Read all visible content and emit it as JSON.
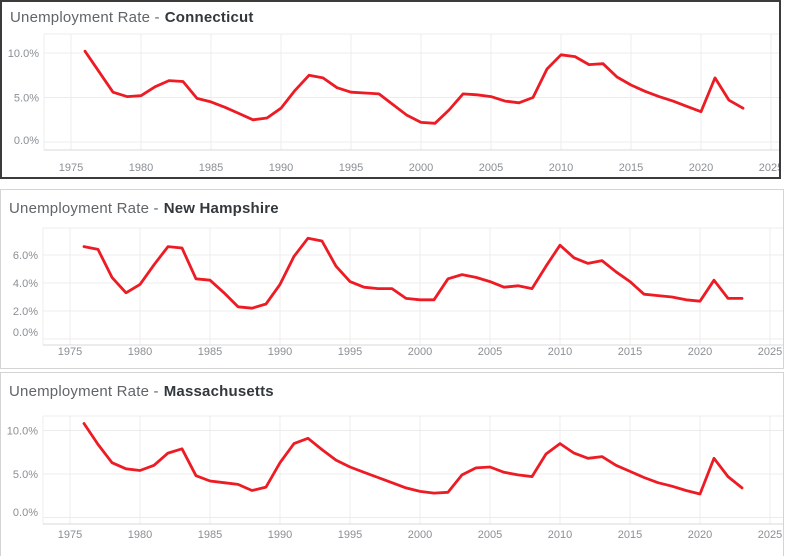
{
  "styles": {
    "line_red": "#ed1b24",
    "grid_color": "#ececec",
    "axis_color": "#d9d9d9",
    "tick_label_color": "#8a8f94",
    "title_prefix_color": "#60656a",
    "title_state_color": "#33383d",
    "frame_dark": "#3b3b3b",
    "frame_light": "#d4d4d4",
    "background": "#ffffff"
  },
  "chart_data": [
    {
      "type": "line",
      "title_prefix": "Unemployment Rate -",
      "title_state": "Connecticut",
      "xlabel": "",
      "ylabel": "",
      "legend": "none",
      "grid": true,
      "line_color": "#ed1b24",
      "xlim": [
        1973,
        2026
      ],
      "ylim": [
        0,
        12
      ],
      "x_ticks": [
        1975,
        1980,
        1985,
        1990,
        1995,
        2000,
        2005,
        2010,
        2015,
        2020,
        2025
      ],
      "x_tick_labels": [
        "1975",
        "1980",
        "1985",
        "1990",
        "1995",
        "2000",
        "2005",
        "2010",
        "2015",
        "2020",
        "2025"
      ],
      "y_ticks": [
        0,
        5,
        10
      ],
      "y_tick_labels": [
        "0.0%",
        "5.0%",
        "10.0%"
      ],
      "x": [
        1976,
        1977,
        1978,
        1979,
        1980,
        1981,
        1982,
        1983,
        1984,
        1985,
        1986,
        1987,
        1988,
        1989,
        1990,
        1991,
        1992,
        1993,
        1994,
        1995,
        1996,
        1997,
        1998,
        1999,
        2000,
        2001,
        2002,
        2003,
        2004,
        2005,
        2006,
        2007,
        2008,
        2009,
        2010,
        2011,
        2012,
        2013,
        2014,
        2015,
        2016,
        2017,
        2018,
        2019,
        2020,
        2021,
        2022,
        2023
      ],
      "y": [
        10.2,
        7.9,
        5.6,
        5.1,
        5.2,
        6.2,
        6.9,
        6.8,
        4.9,
        4.5,
        3.9,
        3.2,
        2.5,
        2.7,
        3.8,
        5.8,
        7.5,
        7.2,
        6.1,
        5.6,
        5.5,
        5.4,
        4.2,
        3.0,
        2.2,
        2.1,
        3.6,
        5.4,
        5.3,
        5.1,
        4.6,
        4.4,
        5.0,
        8.2,
        9.8,
        9.6,
        8.7,
        8.8,
        7.3,
        6.4,
        5.7,
        5.1,
        4.6,
        4.0,
        3.4,
        7.2,
        4.7,
        3.8
      ]
    },
    {
      "type": "line",
      "title_prefix": "Unemployment Rate -",
      "title_state": "New Hampshire",
      "xlabel": "",
      "ylabel": "",
      "legend": "none",
      "grid": true,
      "line_color": "#ed1b24",
      "xlim": [
        1973,
        2026
      ],
      "ylim": [
        0,
        8
      ],
      "x_ticks": [
        1975,
        1980,
        1985,
        1990,
        1995,
        2000,
        2005,
        2010,
        2015,
        2020,
        2025
      ],
      "x_tick_labels": [
        "1975",
        "1980",
        "1985",
        "1990",
        "1995",
        "2000",
        "2005",
        "2010",
        "2015",
        "2020",
        "2025"
      ],
      "y_ticks": [
        0,
        2,
        4,
        6
      ],
      "y_tick_labels": [
        "0.0%",
        "2.0%",
        "4.0%",
        "6.0%"
      ],
      "x": [
        1976,
        1977,
        1978,
        1979,
        1980,
        1981,
        1982,
        1983,
        1984,
        1985,
        1986,
        1987,
        1988,
        1989,
        1990,
        1991,
        1992,
        1993,
        1994,
        1995,
        1996,
        1997,
        1998,
        1999,
        2000,
        2001,
        2002,
        2003,
        2004,
        2005,
        2006,
        2007,
        2008,
        2009,
        2010,
        2011,
        2012,
        2013,
        2014,
        2015,
        2016,
        2017,
        2018,
        2019,
        2020,
        2021,
        2022,
        2023
      ],
      "y": [
        6.6,
        6.4,
        4.4,
        3.3,
        3.9,
        5.3,
        6.6,
        6.5,
        4.3,
        4.2,
        3.3,
        2.3,
        2.2,
        2.5,
        3.9,
        5.9,
        7.2,
        7.0,
        5.2,
        4.1,
        3.7,
        3.6,
        3.6,
        2.9,
        2.8,
        2.8,
        4.3,
        4.6,
        4.4,
        4.1,
        3.7,
        3.8,
        3.6,
        5.2,
        6.7,
        5.8,
        5.4,
        5.6,
        4.8,
        4.1,
        3.2,
        3.1,
        3.0,
        2.8,
        2.7,
        4.2,
        2.9,
        2.9
      ]
    },
    {
      "type": "line",
      "title_prefix": "Unemployment Rate -",
      "title_state": "Massachusetts",
      "xlabel": "",
      "ylabel": "",
      "legend": "none",
      "grid": true,
      "line_color": "#ed1b24",
      "xlim": [
        1973,
        2026
      ],
      "ylim": [
        0,
        11.5
      ],
      "x_ticks": [
        1975,
        1980,
        1985,
        1990,
        1995,
        2000,
        2005,
        2010,
        2015,
        2020,
        2025
      ],
      "x_tick_labels": [
        "1975",
        "1980",
        "1985",
        "1990",
        "1995",
        "2000",
        "2005",
        "2010",
        "2015",
        "2020",
        "2025"
      ],
      "y_ticks": [
        0,
        5,
        10
      ],
      "y_tick_labels": [
        "0.0%",
        "5.0%",
        "10.0%"
      ],
      "x": [
        1976,
        1977,
        1978,
        1979,
        1980,
        1981,
        1982,
        1983,
        1984,
        1985,
        1986,
        1987,
        1988,
        1989,
        1990,
        1991,
        1992,
        1993,
        1994,
        1995,
        1996,
        1997,
        1998,
        1999,
        2000,
        2001,
        2002,
        2003,
        2004,
        2005,
        2006,
        2007,
        2008,
        2009,
        2010,
        2011,
        2012,
        2013,
        2014,
        2015,
        2016,
        2017,
        2018,
        2019,
        2020,
        2021,
        2022,
        2023
      ],
      "y": [
        10.8,
        8.4,
        6.3,
        5.6,
        5.4,
        6.0,
        7.4,
        7.9,
        4.8,
        4.2,
        4.0,
        3.8,
        3.1,
        3.5,
        6.3,
        8.5,
        9.1,
        7.8,
        6.6,
        5.8,
        5.2,
        4.6,
        4.0,
        3.4,
        3.0,
        2.8,
        2.9,
        4.9,
        5.7,
        5.8,
        5.2,
        4.9,
        4.7,
        7.3,
        8.5,
        7.4,
        6.8,
        7.0,
        6.0,
        5.3,
        4.6,
        4.0,
        3.6,
        3.1,
        2.7,
        6.8,
        4.7,
        3.4
      ]
    }
  ]
}
